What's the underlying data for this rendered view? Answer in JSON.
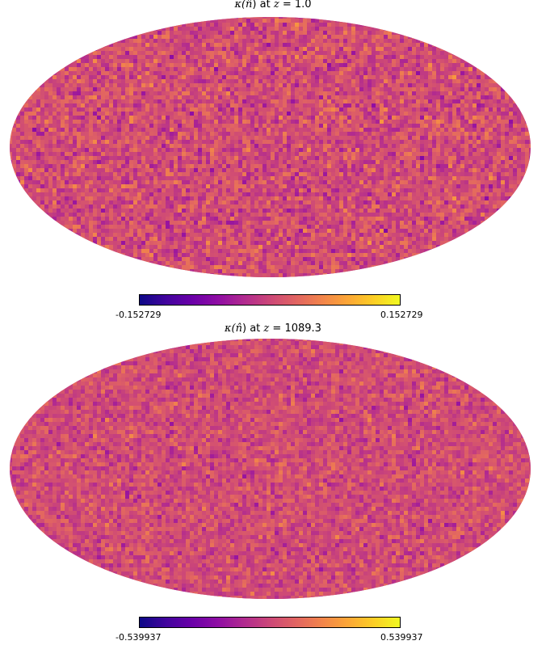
{
  "chart_data": [
    {
      "type": "heatmap",
      "projection": "mollweide",
      "title_prefix": "κ(",
      "title_nhat": "n̂",
      "title_suffix": ") at ",
      "title_z_symbol": "z",
      "title_equals": " = ",
      "title_z_value": "1.0",
      "colormap": "plasma",
      "colorbar_min_label": "-0.152729",
      "colorbar_max_label": "0.152729",
      "vmin": -0.152729,
      "vmax": 0.152729,
      "colorbar_orientation": "horizontal",
      "colorbar_position": "bottom",
      "texture_mean_fraction": 0.52,
      "texture_spread_fraction": 0.11,
      "seed": 7
    },
    {
      "type": "heatmap",
      "projection": "mollweide",
      "title_prefix": "κ(",
      "title_nhat": "n̂",
      "title_suffix": ") at ",
      "title_z_symbol": "z",
      "title_equals": " = ",
      "title_z_value": "1089.3",
      "colormap": "plasma",
      "colorbar_min_label": "-0.539937",
      "colorbar_max_label": "0.539937",
      "vmin": -0.539937,
      "vmax": 0.539937,
      "colorbar_orientation": "horizontal",
      "colorbar_position": "bottom",
      "texture_mean_fraction": 0.52,
      "texture_spread_fraction": 0.09,
      "seed": 13
    }
  ],
  "colors": {
    "plasma_stops": [
      "#0d0887",
      "#41049d",
      "#6a00a8",
      "#8f0da4",
      "#b12a90",
      "#cc4778",
      "#e16462",
      "#f2844b",
      "#fca636",
      "#fcce25",
      "#f0f921"
    ],
    "map_base": "#c5477a"
  }
}
